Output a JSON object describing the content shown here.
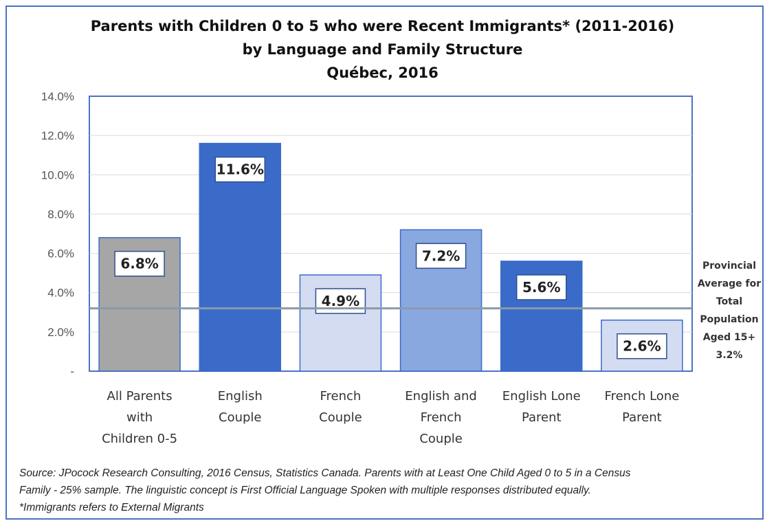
{
  "chart_data": {
    "type": "bar",
    "title_lines": [
      "Parents with Children 0 to 5 who were Recent Immigrants* (2011-2016)",
      "by Language and Family Structure",
      "Québec, 2016"
    ],
    "categories": [
      [
        "All Parents",
        "with",
        "Children 0-5"
      ],
      [
        "English",
        "Couple"
      ],
      [
        "French",
        "Couple"
      ],
      [
        "English and",
        "French",
        "Couple"
      ],
      [
        "English Lone",
        "Parent"
      ],
      [
        "French Lone",
        "Parent"
      ]
    ],
    "values": [
      6.8,
      11.6,
      4.9,
      7.2,
      5.6,
      2.6
    ],
    "data_labels": [
      "6.8%",
      "11.6%",
      "4.9%",
      "7.2%",
      "5.6%",
      "2.6%"
    ],
    "bar_colors": [
      "#a6a6a6",
      "#3a6bc8",
      "#d4dcf2",
      "#8aa8e0",
      "#3a6bc8",
      "#d4dcf2"
    ],
    "ylim": [
      0,
      14
    ],
    "yticks": [
      0,
      2,
      4,
      6,
      8,
      10,
      12,
      14
    ],
    "ytick_labels": [
      "-",
      "2.0%",
      "4.0%",
      "6.0%",
      "8.0%",
      "10.0%",
      "12.0%",
      "14.0%"
    ],
    "grid": true,
    "reference_line": {
      "value": 3.2,
      "label_lines": [
        "Provincial",
        "Average for",
        "Total",
        "Population",
        "Aged 15+",
        "3.2%"
      ],
      "color": "#8c9aa8"
    }
  },
  "source_lines": [
    "Source: JPocock Research Consulting, 2016 Census, Statistics Canada. Parents with at Least One Child Aged 0 to 5 in a Census",
    "Family - 25% sample. The linguistic concept is First Official Language Spoken with multiple responses distributed equally.",
    "*Immigrants refers to External Migrants"
  ]
}
